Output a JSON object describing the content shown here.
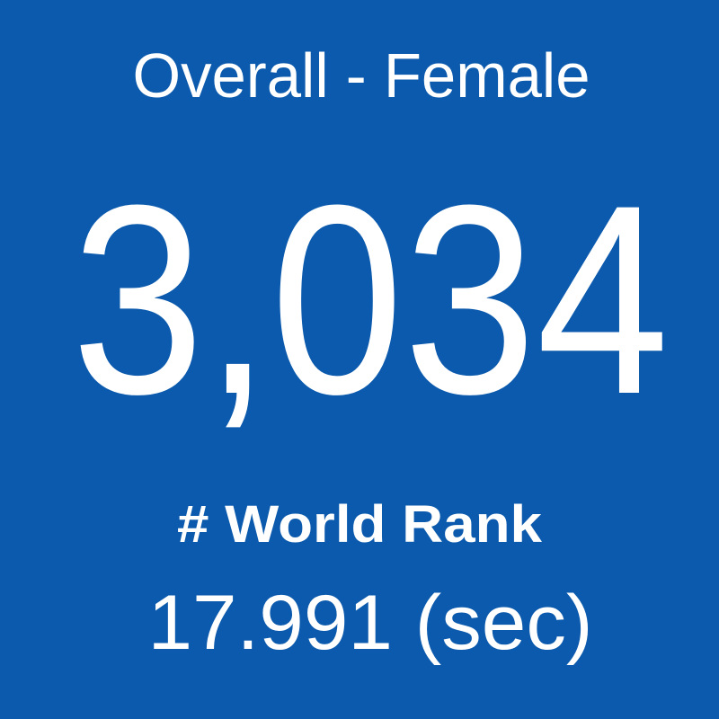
{
  "header": {
    "title": "Overall - Female"
  },
  "stat": {
    "value": "3,034",
    "label": "# World Rank",
    "time": "17.991 (sec)"
  }
}
